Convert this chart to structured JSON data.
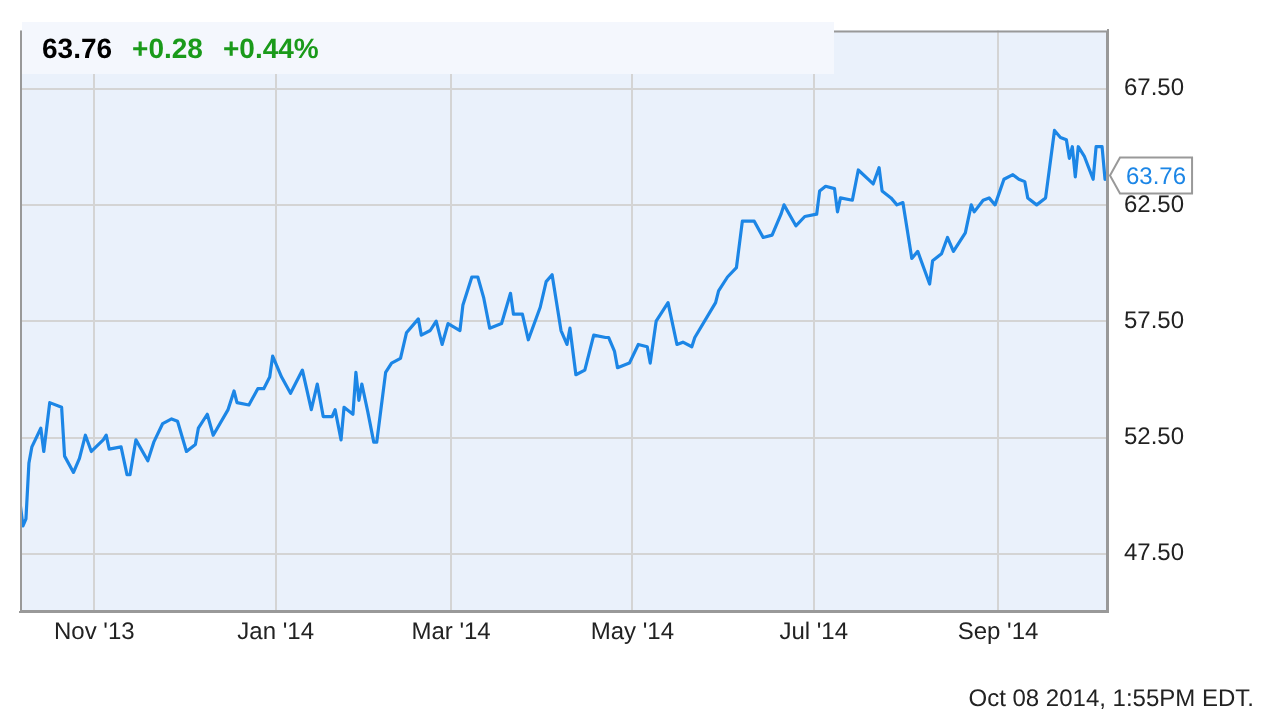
{
  "chart_data": {
    "type": "line",
    "title": "63.76",
    "annotations": [
      "+0.28",
      "+0.44%",
      {
        "text": "63.76",
        "x": "2014-10-08",
        "y": 63.76
      },
      "Oct 08 2014, 1:55PM EDT."
    ],
    "x": [
      "2013-10-07",
      "2013-10-08",
      "2013-10-09",
      "2013-10-10",
      "2013-10-11",
      "2013-10-14",
      "2013-10-15",
      "2013-10-17",
      "2013-10-21",
      "2013-10-22",
      "2013-10-25",
      "2013-10-27",
      "2013-10-29",
      "2013-10-31",
      "2013-11-04",
      "2013-11-05",
      "2013-11-06",
      "2013-11-10",
      "2013-11-12",
      "2013-11-13",
      "2013-11-15",
      "2013-11-19",
      "2013-11-21",
      "2013-11-24",
      "2013-11-27",
      "2013-11-29",
      "2013-12-02",
      "2013-12-05",
      "2013-12-06",
      "2013-12-09",
      "2013-12-11",
      "2013-12-16",
      "2013-12-18",
      "2013-12-19",
      "2013-12-23",
      "2013-12-26",
      "2013-12-28",
      "2013-12-30",
      "2013-12-31",
      "2014-01-03",
      "2014-01-06",
      "2014-01-10",
      "2014-01-13",
      "2014-01-15",
      "2014-01-17",
      "2014-01-20",
      "2014-01-21",
      "2014-01-23",
      "2014-01-24",
      "2014-01-27",
      "2014-01-28",
      "2014-01-29",
      "2014-01-30",
      "2014-02-01",
      "2014-02-03",
      "2014-02-04",
      "2014-02-07",
      "2014-02-09",
      "2014-02-12",
      "2014-02-14",
      "2014-02-18",
      "2014-02-19",
      "2014-02-22",
      "2014-02-24",
      "2014-02-26",
      "2014-02-28",
      "2014-03-04",
      "2014-03-05",
      "2014-03-08",
      "2014-03-10",
      "2014-03-12",
      "2014-03-14",
      "2014-03-18",
      "2014-03-21",
      "2014-03-22",
      "2014-03-25",
      "2014-03-27",
      "2014-03-31",
      "2014-04-02",
      "2014-04-04",
      "2014-04-07",
      "2014-04-09",
      "2014-04-10",
      "2014-04-12",
      "2014-04-15",
      "2014-04-18",
      "2014-04-22",
      "2014-04-23",
      "2014-04-25",
      "2014-04-26",
      "2014-04-30",
      "2014-05-03",
      "2014-05-06",
      "2014-05-07",
      "2014-05-09",
      "2014-05-13",
      "2014-05-16",
      "2014-05-18",
      "2014-05-21",
      "2014-05-22",
      "2014-05-29",
      "2014-05-30",
      "2014-06-02",
      "2014-06-05",
      "2014-06-07",
      "2014-06-11",
      "2014-06-14",
      "2014-06-17",
      "2014-06-20",
      "2014-06-21",
      "2014-06-25",
      "2014-06-28",
      "2014-07-02",
      "2014-07-03",
      "2014-07-05",
      "2014-07-08",
      "2014-07-09",
      "2014-07-10",
      "2014-07-14",
      "2014-07-16",
      "2014-07-21",
      "2014-07-23",
      "2014-07-24",
      "2014-07-27",
      "2014-07-29",
      "2014-07-31",
      "2014-08-03",
      "2014-08-05",
      "2014-08-07",
      "2014-08-09",
      "2014-08-10",
      "2014-08-13",
      "2014-08-15",
      "2014-08-17",
      "2014-08-21",
      "2014-08-23",
      "2014-08-24",
      "2014-08-27",
      "2014-08-29",
      "2014-08-31",
      "2014-09-03",
      "2014-09-06",
      "2014-09-08",
      "2014-09-10",
      "2014-09-11",
      "2014-09-14",
      "2014-09-17",
      "2014-09-20",
      "2014-09-22",
      "2014-09-24",
      "2014-09-25",
      "2014-09-26",
      "2014-09-27",
      "2014-09-28",
      "2014-09-30",
      "2014-10-03",
      "2014-10-04",
      "2014-10-06",
      "2014-10-07",
      "2014-10-08"
    ],
    "series": [
      {
        "color": "#1c86e6",
        "values": [
          49.7,
          48.7,
          49.0,
          51.4,
          52.1,
          52.9,
          51.9,
          54.0,
          53.8,
          51.7,
          51.0,
          51.6,
          52.6,
          51.9,
          52.4,
          52.6,
          52.0,
          52.1,
          50.9,
          50.9,
          52.4,
          51.5,
          52.3,
          53.1,
          53.3,
          53.2,
          51.9,
          52.2,
          52.9,
          53.5,
          52.6,
          53.7,
          54.5,
          54.0,
          53.9,
          54.6,
          54.6,
          55.1,
          56.0,
          55.1,
          54.4,
          55.4,
          53.7,
          54.8,
          53.4,
          53.4,
          53.7,
          52.4,
          53.8,
          53.5,
          55.3,
          54.1,
          54.8,
          53.6,
          52.3,
          52.3,
          55.3,
          55.7,
          55.9,
          57.0,
          57.6,
          56.9,
          57.1,
          57.5,
          56.5,
          57.4,
          57.1,
          58.2,
          59.4,
          59.4,
          58.5,
          57.2,
          57.4,
          58.7,
          57.8,
          57.8,
          56.7,
          58.1,
          59.2,
          59.5,
          57.1,
          56.5,
          57.2,
          55.2,
          55.4,
          56.9,
          56.8,
          56.8,
          56.2,
          55.5,
          55.7,
          56.5,
          56.4,
          55.7,
          57.5,
          58.3,
          56.5,
          56.6,
          56.4,
          56.8,
          58.3,
          58.8,
          59.4,
          59.8,
          61.8,
          61.8,
          61.1,
          61.2,
          62.1,
          62.5,
          61.6,
          62.0,
          62.1,
          63.1,
          63.3,
          63.2,
          62.2,
          62.8,
          62.7,
          64.0,
          63.4,
          64.1,
          63.1,
          62.8,
          62.5,
          62.6,
          60.2,
          60.5,
          59.8,
          59.1,
          60.1,
          60.4,
          61.1,
          60.5,
          61.3,
          62.5,
          62.2,
          62.7,
          62.8,
          62.5,
          63.6,
          63.8,
          63.6,
          63.5,
          62.8,
          62.5,
          62.8,
          65.7,
          65.4,
          65.3,
          64.5,
          65.0,
          63.7,
          65.0,
          64.6,
          63.6,
          65.0,
          65.0,
          63.6,
          63.76
        ]
      }
    ],
    "xlim": [
      "2013-10-07",
      "2014-10-08"
    ],
    "xticks": [
      {
        "value": "2013-11-01",
        "label": "Nov '13"
      },
      {
        "value": "2014-01-01",
        "label": "Jan '14"
      },
      {
        "value": "2014-03-01",
        "label": "Mar '14"
      },
      {
        "value": "2014-05-01",
        "label": "May '14"
      },
      {
        "value": "2014-07-01",
        "label": "Jul '14"
      },
      {
        "value": "2014-09-01",
        "label": "Sep '14"
      }
    ],
    "ylim": [
      45,
      70
    ],
    "yticks": [
      {
        "value": 47.5,
        "label": "47.50"
      },
      {
        "value": 52.5,
        "label": "52.50"
      },
      {
        "value": 57.5,
        "label": "57.50"
      },
      {
        "value": 62.5,
        "label": "62.50"
      },
      {
        "value": 67.5,
        "label": "67.50"
      }
    ],
    "grid": true,
    "legend": false,
    "marker": "none",
    "line_style": "solid"
  }
}
